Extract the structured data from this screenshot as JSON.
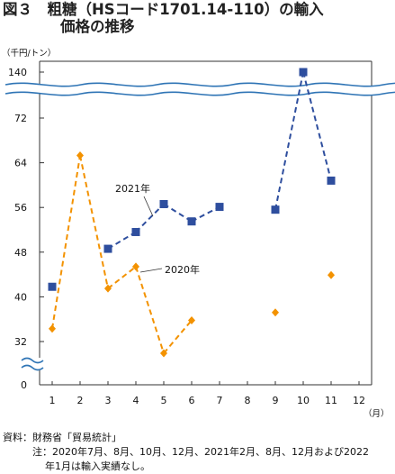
{
  "title_line1": "図３　粗糖（HSコード1701.14-110）の輸入",
  "title_line2": "価格の推移",
  "footer": {
    "source": "資料：財務省「貿易統計」",
    "note_line1": "注：2020年7月、8月、10月、12月、2021年2月、8月、12月および2022",
    "note_line2": "年1月は輸入実績なし。"
  },
  "chart_data": {
    "type": "line",
    "ylabel": "（千円/トン）",
    "xlabel": "（月）",
    "x": [
      1,
      2,
      3,
      4,
      5,
      6,
      7,
      8,
      9,
      10,
      11,
      12
    ],
    "x_tick_labels": [
      "1",
      "2",
      "3",
      "4",
      "5",
      "6",
      "7",
      "8",
      "9",
      "10",
      "11",
      "12"
    ],
    "y_tick_labels": [
      "0",
      "32",
      "40",
      "48",
      "56",
      "64",
      "72",
      "140"
    ],
    "ylim": [
      32,
      72
    ],
    "axis_breaks": [
      "0-32",
      "72-140"
    ],
    "grid": false,
    "series": [
      {
        "name": "2020年",
        "color": "#F39200",
        "marker": "diamond",
        "line_style": "dashed",
        "values": [
          34.3,
          65.3,
          41.5,
          45.4,
          29.9,
          35.8,
          null,
          null,
          37.2,
          null,
          43.9,
          null
        ]
      },
      {
        "name": "2021年",
        "color": "#2E4E9E",
        "marker": "square",
        "line_style": "dashed",
        "values": [
          41.8,
          null,
          48.6,
          51.6,
          56.6,
          53.5,
          56.1,
          null,
          55.6,
          140,
          60.8,
          null
        ]
      }
    ]
  }
}
